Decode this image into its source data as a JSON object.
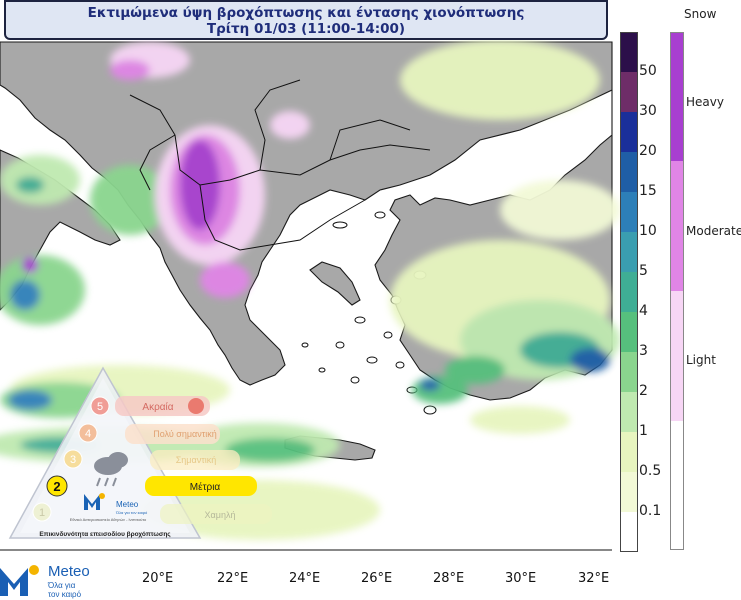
{
  "title": {
    "line1": "Εκτιμώμενα ύψη βροχόπτωσης και έντασης χιονόπτωσης",
    "line2": "Τρίτη 01/03 (11:00-14:00)"
  },
  "rain_legend": {
    "labels": [
      "50",
      "30",
      "20",
      "15",
      "10",
      "5",
      "4",
      "3",
      "2",
      "1",
      "0.5",
      "0.1"
    ],
    "colors": [
      "#2c0f4a",
      "#6e2d68",
      "#1a2f9a",
      "#1f5ea6",
      "#2d7fb8",
      "#3a9eb0",
      "#3fae95",
      "#56c07d",
      "#8ad58e",
      "#bfe9b0",
      "#e7f5bf",
      "#f2f9d6",
      "#ffffff"
    ]
  },
  "snow_legend": {
    "title": "Snow",
    "levels": [
      "Heavy",
      "Moderate",
      "Light"
    ],
    "colors": [
      "#a83fd0",
      "#e085e6",
      "#f7d6f5"
    ]
  },
  "axis": {
    "longitudes": [
      "20°E",
      "22°E",
      "24°E",
      "26°E",
      "28°E",
      "30°E",
      "32°E"
    ]
  },
  "warning_triangle": {
    "levels": [
      {
        "number": "5",
        "label": "Ακραία"
      },
      {
        "number": "4",
        "label": "Πολύ σημαντική"
      },
      {
        "number": "3",
        "label": "Σημαντική"
      },
      {
        "number": "2",
        "label": "Μέτρια"
      },
      {
        "number": "1",
        "label": "Χαμηλή"
      }
    ],
    "active_level": "2",
    "footer": "Επικινδυνότητα επεισοδίου βροχόπτωσης",
    "brand": "Meteo",
    "brand_tagline": "Όλα για τον καιρό",
    "institute": "Εθνικό Αστεροσκοπείο Αθηνών - Ινστιτούτο"
  },
  "logo": {
    "brand": "Meteo",
    "tagline_1": "Όλα για",
    "tagline_2": "τον καιρό"
  },
  "colors": {
    "land": "#a6a6a6",
    "sea": "#ffffff",
    "border": "#222222"
  }
}
